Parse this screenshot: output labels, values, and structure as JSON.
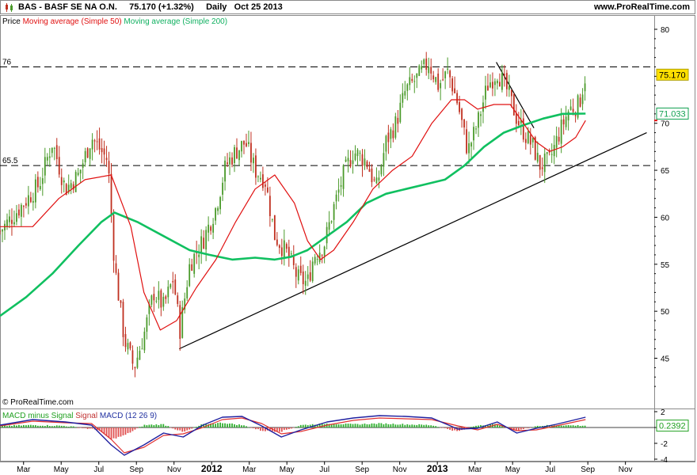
{
  "header": {
    "title": "BAS - BASF SE NA O.N.",
    "last": "75.170 (+1.32%)",
    "period": "Daily",
    "date": "Oct 25 2013",
    "site": "www.ProRealTime.com"
  },
  "legend": {
    "price": "Price",
    "ma50": "Moving average (Simple 50)",
    "ma200": "Moving average (Simple 200)"
  },
  "copyright": "© ProRealTime.com",
  "macd_legend": {
    "part1": "MACD minus Signal",
    "part2": "Signal",
    "part3": "MACD (12 26 9)"
  },
  "colors": {
    "candle_up": "#4a9a2a",
    "candle_down": "#c03020",
    "ma50": "#e01010",
    "ma200": "#10c060",
    "trendline": "#000000"
  },
  "chart_data": [
    {
      "type": "line",
      "title": "BAS - BASF SE NA O.N.",
      "ylim": [
        41,
        80
      ],
      "yticks": [
        45,
        50,
        55,
        60,
        65,
        70,
        75,
        80
      ],
      "x_labels": [
        "Mar",
        "May",
        "Jul",
        "Sep",
        "Nov",
        "2012",
        "Mar",
        "May",
        "Jul",
        "Sep",
        "Nov",
        "2013",
        "Mar",
        "May",
        "Jul",
        "Sep",
        "Nov"
      ],
      "horizontal_levels": [
        {
          "label": "76",
          "value": 76
        },
        {
          "label": "65.5",
          "value": 65.5
        }
      ],
      "last_price": {
        "label": "75.170",
        "value": 75.17
      },
      "ma200_last": {
        "label": "71.033",
        "value": 71.033
      },
      "ma50_last_value": 70.3,
      "trendlines": [
        {
          "name": "support",
          "from": [
            0.2739,
            46.0
          ],
          "to": [
            0.9885,
            69.0
          ]
        },
        {
          "name": "resistance",
          "from": [
            0.7586,
            76.5
          ],
          "to": [
            0.8161,
            69.5
          ]
        }
      ],
      "series": [
        {
          "name": "Price",
          "points": [
            [
              0.0,
              58.5
            ],
            [
              0.03,
              61.0
            ],
            [
              0.06,
              63.5
            ],
            [
              0.08,
              68.0
            ],
            [
              0.1,
              63.0
            ],
            [
              0.12,
              64.5
            ],
            [
              0.14,
              68.5
            ],
            [
              0.155,
              67.0
            ],
            [
              0.165,
              66.0
            ],
            [
              0.175,
              55.0
            ],
            [
              0.19,
              47.0
            ],
            [
              0.205,
              44.0
            ],
            [
              0.22,
              47.5
            ],
            [
              0.235,
              52.0
            ],
            [
              0.25,
              50.5
            ],
            [
              0.265,
              53.5
            ],
            [
              0.275,
              48.0
            ],
            [
              0.29,
              55.0
            ],
            [
              0.31,
              57.5
            ],
            [
              0.33,
              61.0
            ],
            [
              0.345,
              65.5
            ],
            [
              0.36,
              67.0
            ],
            [
              0.375,
              68.0
            ],
            [
              0.39,
              65.0
            ],
            [
              0.405,
              64.0
            ],
            [
              0.42,
              58.0
            ],
            [
              0.44,
              56.0
            ],
            [
              0.455,
              53.5
            ],
            [
              0.47,
              53.0
            ],
            [
              0.48,
              56.0
            ],
            [
              0.495,
              57.0
            ],
            [
              0.51,
              61.0
            ],
            [
              0.525,
              64.5
            ],
            [
              0.54,
              67.0
            ],
            [
              0.56,
              66.0
            ],
            [
              0.575,
              63.0
            ],
            [
              0.59,
              68.0
            ],
            [
              0.605,
              70.0
            ],
            [
              0.62,
              73.5
            ],
            [
              0.64,
              75.0
            ],
            [
              0.655,
              76.5
            ],
            [
              0.67,
              74.0
            ],
            [
              0.685,
              75.5
            ],
            [
              0.7,
              72.0
            ],
            [
              0.715,
              67.0
            ],
            [
              0.73,
              70.0
            ],
            [
              0.745,
              74.0
            ],
            [
              0.76,
              75.5
            ],
            [
              0.775,
              73.5
            ],
            [
              0.79,
              70.5
            ],
            [
              0.805,
              68.5
            ],
            [
              0.815,
              67.5
            ],
            [
              0.825,
              65.5
            ],
            [
              0.84,
              66.0
            ],
            [
              0.855,
              69.0
            ],
            [
              0.87,
              71.5
            ],
            [
              0.885,
              72.0
            ],
            [
              0.895,
              75.17
            ]
          ]
        },
        {
          "name": "Moving average (Simple 50)",
          "points": [
            [
              0.0,
              59.0
            ],
            [
              0.05,
              59.0
            ],
            [
              0.09,
              62.0
            ],
            [
              0.13,
              64.0
            ],
            [
              0.17,
              64.5
            ],
            [
              0.2,
              59.0
            ],
            [
              0.22,
              52.0
            ],
            [
              0.245,
              48.0
            ],
            [
              0.27,
              49.0
            ],
            [
              0.3,
              52.5
            ],
            [
              0.33,
              55.5
            ],
            [
              0.36,
              59.5
            ],
            [
              0.39,
              63.0
            ],
            [
              0.42,
              64.5
            ],
            [
              0.45,
              61.5
            ],
            [
              0.47,
              57.5
            ],
            [
              0.49,
              55.5
            ],
            [
              0.51,
              56.5
            ],
            [
              0.54,
              59.5
            ],
            [
              0.57,
              63.0
            ],
            [
              0.6,
              65.0
            ],
            [
              0.63,
              66.5
            ],
            [
              0.66,
              70.0
            ],
            [
              0.69,
              72.5
            ],
            [
              0.71,
              72.5
            ],
            [
              0.73,
              71.5
            ],
            [
              0.755,
              72.0
            ],
            [
              0.78,
              72.0
            ],
            [
              0.8,
              70.0
            ],
            [
              0.82,
              68.0
            ],
            [
              0.84,
              67.0
            ],
            [
              0.86,
              67.5
            ],
            [
              0.88,
              68.5
            ],
            [
              0.895,
              70.3
            ]
          ]
        },
        {
          "name": "Moving average (Simple 200)",
          "points": [
            [
              0.0,
              49.5
            ],
            [
              0.04,
              51.5
            ],
            [
              0.08,
              54.0
            ],
            [
              0.12,
              57.0
            ],
            [
              0.155,
              59.5
            ],
            [
              0.175,
              60.5
            ],
            [
              0.21,
              59.5
            ],
            [
              0.25,
              58.0
            ],
            [
              0.29,
              56.5
            ],
            [
              0.32,
              56.0
            ],
            [
              0.355,
              55.5
            ],
            [
              0.39,
              55.7
            ],
            [
              0.42,
              55.5
            ],
            [
              0.445,
              55.8
            ],
            [
              0.47,
              56.5
            ],
            [
              0.5,
              58.0
            ],
            [
              0.53,
              59.5
            ],
            [
              0.56,
              61.5
            ],
            [
              0.59,
              62.5
            ],
            [
              0.62,
              63.0
            ],
            [
              0.65,
              63.5
            ],
            [
              0.68,
              64.0
            ],
            [
              0.71,
              65.5
            ],
            [
              0.74,
              67.5
            ],
            [
              0.77,
              69.0
            ],
            [
              0.8,
              69.8
            ],
            [
              0.83,
              70.5
            ],
            [
              0.86,
              71.0
            ],
            [
              0.895,
              71.033
            ]
          ]
        }
      ]
    },
    {
      "type": "bar",
      "title": "MACD (12 26 9)",
      "ylim": [
        -4,
        2
      ],
      "yticks": [
        2,
        0,
        -2,
        -4
      ],
      "last_value": {
        "label": "0.2392",
        "value": 0.2392
      },
      "series": [
        {
          "name": "MACD minus Signal",
          "points": [
            [
              0.0,
              0.2
            ],
            [
              0.05,
              0.3
            ],
            [
              0.1,
              0.2
            ],
            [
              0.15,
              -0.3
            ],
            [
              0.17,
              -1.5
            ],
            [
              0.19,
              -1.0
            ],
            [
              0.22,
              0.3
            ],
            [
              0.25,
              0.4
            ],
            [
              0.28,
              -0.6
            ],
            [
              0.31,
              0.4
            ],
            [
              0.34,
              0.6
            ],
            [
              0.37,
              0.3
            ],
            [
              0.4,
              -0.4
            ],
            [
              0.43,
              -0.5
            ],
            [
              0.46,
              0.3
            ],
            [
              0.5,
              0.5
            ],
            [
              0.54,
              0.4
            ],
            [
              0.58,
              0.5
            ],
            [
              0.62,
              0.4
            ],
            [
              0.66,
              0.3
            ],
            [
              0.7,
              -0.5
            ],
            [
              0.73,
              0.3
            ],
            [
              0.76,
              0.4
            ],
            [
              0.79,
              -0.4
            ],
            [
              0.82,
              0.2
            ],
            [
              0.85,
              0.3
            ],
            [
              0.895,
              0.24
            ]
          ]
        },
        {
          "name": "Signal",
          "points": [
            [
              0.0,
              0.2
            ],
            [
              0.05,
              0.8
            ],
            [
              0.1,
              0.6
            ],
            [
              0.14,
              0.5
            ],
            [
              0.17,
              -1.5
            ],
            [
              0.19,
              -3.2
            ],
            [
              0.22,
              -2.5
            ],
            [
              0.25,
              -1.0
            ],
            [
              0.28,
              -0.8
            ],
            [
              0.31,
              0.0
            ],
            [
              0.34,
              1.0
            ],
            [
              0.37,
              1.2
            ],
            [
              0.4,
              0.5
            ],
            [
              0.43,
              -0.8
            ],
            [
              0.46,
              -0.5
            ],
            [
              0.5,
              0.3
            ],
            [
              0.54,
              0.9
            ],
            [
              0.58,
              1.2
            ],
            [
              0.62,
              1.1
            ],
            [
              0.66,
              1.0
            ],
            [
              0.7,
              0.2
            ],
            [
              0.73,
              -0.3
            ],
            [
              0.76,
              0.4
            ],
            [
              0.79,
              -0.4
            ],
            [
              0.82,
              -0.3
            ],
            [
              0.85,
              0.2
            ],
            [
              0.895,
              1.0
            ]
          ]
        },
        {
          "name": "MACD",
          "points": [
            [
              0.0,
              0.3
            ],
            [
              0.05,
              1.0
            ],
            [
              0.1,
              0.7
            ],
            [
              0.14,
              0.3
            ],
            [
              0.17,
              -2.2
            ],
            [
              0.19,
              -3.5
            ],
            [
              0.22,
              -2.2
            ],
            [
              0.25,
              -0.7
            ],
            [
              0.28,
              -1.2
            ],
            [
              0.31,
              0.3
            ],
            [
              0.34,
              1.3
            ],
            [
              0.37,
              1.4
            ],
            [
              0.4,
              0.2
            ],
            [
              0.43,
              -1.2
            ],
            [
              0.46,
              -0.3
            ],
            [
              0.5,
              0.7
            ],
            [
              0.54,
              1.2
            ],
            [
              0.58,
              1.5
            ],
            [
              0.62,
              1.4
            ],
            [
              0.66,
              1.2
            ],
            [
              0.7,
              -0.2
            ],
            [
              0.73,
              -0.1
            ],
            [
              0.76,
              0.7
            ],
            [
              0.79,
              -0.7
            ],
            [
              0.82,
              -0.1
            ],
            [
              0.85,
              0.4
            ],
            [
              0.895,
              1.3
            ]
          ]
        }
      ]
    }
  ]
}
